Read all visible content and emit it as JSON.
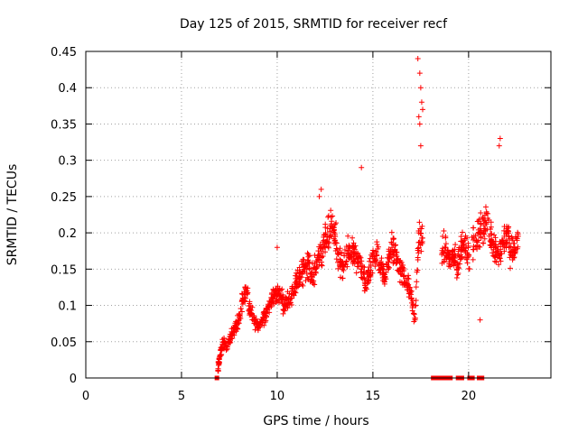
{
  "chart_data": {
    "type": "scatter",
    "title": "Day 125 of 2015, SRMTID for receiver recf",
    "xlabel": "GPS time / hours",
    "ylabel": "SRMTID / TECUs",
    "xlim": [
      0,
      24.3
    ],
    "ylim": [
      0,
      0.45
    ],
    "xticks": [
      0,
      5,
      10,
      15,
      20
    ],
    "yticks": [
      0,
      0.05,
      0.1,
      0.15,
      0.2,
      0.25,
      0.3,
      0.35,
      0.4,
      0.45
    ],
    "xtick_labels": [
      "0",
      "5",
      "10",
      "15",
      "20"
    ],
    "ytick_labels": [
      "0",
      "0.05",
      "0.1",
      "0.15",
      "0.2",
      "0.25",
      "0.3",
      "0.35",
      "0.4",
      "0.45"
    ],
    "grid": true,
    "marker": "plus",
    "color": "#ff0000",
    "series": [
      {
        "name": "SRMTID",
        "approximate_trend": [
          [
            6.9,
            0.01
          ],
          [
            7.0,
            0.03
          ],
          [
            7.2,
            0.05
          ],
          [
            7.4,
            0.04
          ],
          [
            7.6,
            0.06
          ],
          [
            7.8,
            0.07
          ],
          [
            8.0,
            0.08
          ],
          [
            8.2,
            0.11
          ],
          [
            8.4,
            0.12
          ],
          [
            8.6,
            0.09
          ],
          [
            8.8,
            0.08
          ],
          [
            9.0,
            0.07
          ],
          [
            9.2,
            0.08
          ],
          [
            9.4,
            0.09
          ],
          [
            9.6,
            0.1
          ],
          [
            9.8,
            0.11
          ],
          [
            10.0,
            0.12
          ],
          [
            10.2,
            0.11
          ],
          [
            10.4,
            0.1
          ],
          [
            10.6,
            0.11
          ],
          [
            10.8,
            0.12
          ],
          [
            11.0,
            0.13
          ],
          [
            11.2,
            0.14
          ],
          [
            11.4,
            0.15
          ],
          [
            11.6,
            0.16
          ],
          [
            11.8,
            0.14
          ],
          [
            12.0,
            0.15
          ],
          [
            12.2,
            0.17
          ],
          [
            12.4,
            0.18
          ],
          [
            12.6,
            0.19
          ],
          [
            12.8,
            0.21
          ],
          [
            13.0,
            0.2
          ],
          [
            13.2,
            0.17
          ],
          [
            13.4,
            0.15
          ],
          [
            13.6,
            0.16
          ],
          [
            13.8,
            0.18
          ],
          [
            14.0,
            0.17
          ],
          [
            14.2,
            0.16
          ],
          [
            14.4,
            0.15
          ],
          [
            14.6,
            0.13
          ],
          [
            14.8,
            0.14
          ],
          [
            15.0,
            0.16
          ],
          [
            15.2,
            0.17
          ],
          [
            15.4,
            0.15
          ],
          [
            15.6,
            0.14
          ],
          [
            15.8,
            0.16
          ],
          [
            16.0,
            0.18
          ],
          [
            16.2,
            0.17
          ],
          [
            16.4,
            0.15
          ],
          [
            16.6,
            0.14
          ],
          [
            16.8,
            0.13
          ],
          [
            17.0,
            0.11
          ],
          [
            17.2,
            0.08
          ],
          [
            17.4,
            0.2
          ],
          [
            17.6,
            0.19
          ],
          [
            18.6,
            0.17
          ],
          [
            18.8,
            0.18
          ],
          [
            19.0,
            0.16
          ],
          [
            19.2,
            0.17
          ],
          [
            19.4,
            0.15
          ],
          [
            19.6,
            0.18
          ],
          [
            19.8,
            0.19
          ],
          [
            20.0,
            0.17
          ],
          [
            20.4,
            0.19
          ],
          [
            20.6,
            0.2
          ],
          [
            20.8,
            0.21
          ],
          [
            21.0,
            0.22
          ],
          [
            21.2,
            0.19
          ],
          [
            21.4,
            0.18
          ],
          [
            21.6,
            0.17
          ],
          [
            21.8,
            0.19
          ],
          [
            22.0,
            0.2
          ],
          [
            22.2,
            0.17
          ],
          [
            22.4,
            0.18
          ],
          [
            22.6,
            0.19
          ]
        ],
        "outliers": [
          [
            17.35,
            0.44
          ],
          [
            17.45,
            0.42
          ],
          [
            17.5,
            0.4
          ],
          [
            17.55,
            0.38
          ],
          [
            17.6,
            0.37
          ],
          [
            17.45,
            0.35
          ],
          [
            17.5,
            0.32
          ],
          [
            17.4,
            0.36
          ],
          [
            21.6,
            0.32
          ],
          [
            21.65,
            0.33
          ],
          [
            20.6,
            0.08
          ],
          [
            10.0,
            0.18
          ],
          [
            14.4,
            0.29
          ],
          [
            12.3,
            0.26
          ],
          [
            12.2,
            0.25
          ]
        ],
        "zero_points": [
          6.85,
          18.15,
          18.3,
          18.45,
          18.6,
          18.75,
          18.9,
          19.05,
          19.45,
          19.65,
          20.05,
          20.2,
          20.55,
          20.7
        ]
      }
    ]
  }
}
